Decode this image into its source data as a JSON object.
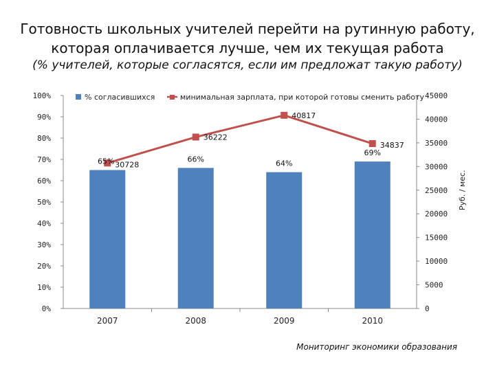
{
  "header": {
    "title_line1": "Готовность школьных учителей перейти на рутинную работу,",
    "title_line2": "которая оплачивается лучше, чем их текущая работа",
    "subtitle": "(% учителей, которые согласятся, если им предложат такую работу)"
  },
  "footer": {
    "source": "Мониторинг экономики образования"
  },
  "chart_data": {
    "type": "bar",
    "categories": [
      "2007",
      "2008",
      "2009",
      "2010"
    ],
    "series": [
      {
        "name": "% согласившихся",
        "kind": "bar",
        "axis": "left",
        "values": [
          65,
          66,
          64,
          69
        ],
        "labels": [
          "65%",
          "66%",
          "64%",
          "69%"
        ],
        "color": "#4f81bd"
      },
      {
        "name": "минимальная зарплата, при которой готовы сменить работу",
        "kind": "line",
        "axis": "right",
        "values": [
          30728,
          36222,
          40817,
          34837
        ],
        "labels": [
          "30728",
          "36222",
          "40817",
          "34837"
        ],
        "color": "#c0504d"
      }
    ],
    "y_left": {
      "ylim": [
        0,
        100
      ],
      "ticks": [
        "0%",
        "10%",
        "20%",
        "30%",
        "40%",
        "50%",
        "60%",
        "70%",
        "80%",
        "90%",
        "100%"
      ]
    },
    "y_right": {
      "ylim": [
        0,
        45000
      ],
      "label": "Руб. / мес.",
      "ticks": [
        "0",
        "5000",
        "10000",
        "15000",
        "20000",
        "25000",
        "30000",
        "35000",
        "40000",
        "45000"
      ]
    },
    "legend": "top",
    "grid": false
  }
}
